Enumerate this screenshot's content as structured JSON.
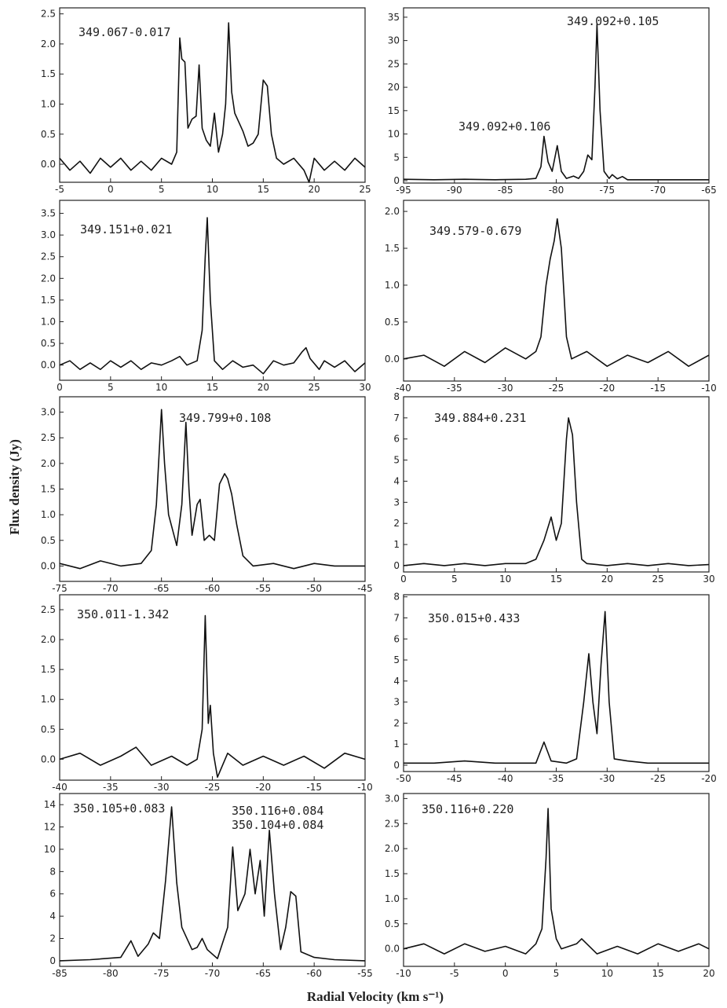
{
  "figure": {
    "xlabel": "Radial Velocity (km s⁻¹)",
    "ylabel": "Flux density (Jy)"
  },
  "chart_data": [
    {
      "type": "line",
      "annotations": [
        "349.067-0.017"
      ],
      "xlim": [
        -5,
        25
      ],
      "ylim": [
        -0.3,
        2.6
      ],
      "xticks": [
        -5,
        0,
        5,
        10,
        15,
        20,
        25
      ],
      "yticks": [
        {
          "value": 0,
          "label": "0.0"
        },
        {
          "value": 0.5,
          "label": "0.5"
        },
        {
          "value": 1,
          "label": "1.0"
        },
        {
          "value": 1.5,
          "label": "1.5"
        },
        {
          "value": 2,
          "label": "2.0"
        },
        {
          "value": 2.5,
          "label": "2.5"
        }
      ],
      "x": [
        -5,
        -4,
        -3,
        -2,
        -1,
        0,
        1,
        2,
        3,
        4,
        5,
        6,
        6.5,
        6.8,
        7,
        7.3,
        7.6,
        8,
        8.4,
        8.7,
        9,
        9.4,
        9.8,
        10.2,
        10.6,
        11,
        11.3,
        11.6,
        11.9,
        12.2,
        12.6,
        13,
        13.5,
        14,
        14.5,
        15,
        15.4,
        15.8,
        16.3,
        17,
        18,
        19,
        19.5,
        20,
        21,
        22,
        23,
        24,
        25
      ],
      "values": [
        0.1,
        -0.1,
        0.05,
        -0.15,
        0.1,
        -0.05,
        0.1,
        -0.1,
        0.05,
        -0.1,
        0.1,
        0,
        0.2,
        2.1,
        1.75,
        1.7,
        0.6,
        0.75,
        0.8,
        1.65,
        0.6,
        0.4,
        0.3,
        0.85,
        0.2,
        0.5,
        1.0,
        2.35,
        1.2,
        0.85,
        0.7,
        0.55,
        0.3,
        0.35,
        0.5,
        1.4,
        1.3,
        0.5,
        0.1,
        0,
        0.1,
        -0.1,
        -0.3,
        0.1,
        -0.1,
        0.05,
        -0.1,
        0.1,
        -0.05
      ]
    },
    {
      "type": "line",
      "annotations": [
        "349.092+0.105",
        "349.092+0.106"
      ],
      "xlim": [
        -95,
        -65
      ],
      "ylim": [
        -0.5,
        37
      ],
      "xticks": [
        -95,
        -90,
        -85,
        -80,
        -75,
        -70,
        -65
      ],
      "yticks": [
        0,
        5,
        10,
        15,
        20,
        25,
        30,
        35
      ],
      "x": [
        -95,
        -92,
        -89,
        -86,
        -83,
        -82,
        -81.5,
        -81.2,
        -80.8,
        -80.4,
        -79.9,
        -79.5,
        -79,
        -78.3,
        -77.8,
        -77.3,
        -76.9,
        -76.5,
        -76.2,
        -76,
        -75.7,
        -75.3,
        -74.8,
        -74.5,
        -74,
        -73.5,
        -73,
        -70,
        -65
      ],
      "values": [
        0.3,
        0.2,
        0.3,
        0.2,
        0.3,
        0.5,
        3,
        9.5,
        4,
        2,
        7.5,
        2,
        0.5,
        1,
        0.5,
        2,
        5.5,
        4.5,
        20,
        33.5,
        15,
        2,
        0.5,
        1.3,
        0.4,
        0.9,
        0.2,
        0.2,
        0.2
      ]
    },
    {
      "type": "line",
      "annotations": [
        "349.151+0.021"
      ],
      "xlim": [
        0,
        30
      ],
      "ylim": [
        -0.35,
        3.8
      ],
      "xticks": [
        0,
        5,
        10,
        15,
        20,
        25,
        30
      ],
      "yticks": [
        {
          "value": 0,
          "label": "0.0"
        },
        {
          "value": 0.5,
          "label": "0.5"
        },
        {
          "value": 1,
          "label": "1.0"
        },
        {
          "value": 1.5,
          "label": "1.5"
        },
        {
          "value": 2,
          "label": "2.0"
        },
        {
          "value": 2.5,
          "label": "2.5"
        },
        {
          "value": 3,
          "label": "3.0"
        },
        {
          "value": 3.5,
          "label": "3.5"
        }
      ],
      "x": [
        0,
        1,
        2,
        3,
        4,
        5,
        6,
        7,
        8,
        9,
        10,
        11,
        11.8,
        12.5,
        13.5,
        14,
        14.3,
        14.5,
        14.8,
        15.2,
        16,
        17,
        18,
        19,
        20,
        21,
        22,
        23,
        23.8,
        24.2,
        24.6,
        25.5,
        26,
        27,
        28,
        29,
        30
      ],
      "values": [
        0,
        0.1,
        -0.1,
        0.05,
        -0.1,
        0.1,
        -0.05,
        0.1,
        -0.1,
        0.05,
        0,
        0.1,
        0.2,
        0,
        0.1,
        0.8,
        2.5,
        3.4,
        1.5,
        0.1,
        -0.1,
        0.1,
        -0.05,
        0,
        -0.2,
        0.1,
        0,
        0.05,
        0.3,
        0.4,
        0.15,
        -0.1,
        0.1,
        -0.05,
        0.1,
        -0.15,
        0.05
      ]
    },
    {
      "type": "line",
      "annotations": [
        "349.579-0.679"
      ],
      "xlim": [
        -40,
        -10
      ],
      "ylim": [
        -0.3,
        2.15
      ],
      "xticks": [
        -40,
        -35,
        -30,
        -25,
        -20,
        -15,
        -10
      ],
      "yticks": [
        {
          "value": 0,
          "label": "0.0"
        },
        {
          "value": 0.5,
          "label": "0.5"
        },
        {
          "value": 1,
          "label": "1.0"
        },
        {
          "value": 1.5,
          "label": "1.5"
        },
        {
          "value": 2,
          "label": "2.0"
        }
      ],
      "x": [
        -40,
        -38,
        -36,
        -34,
        -32,
        -30,
        -28,
        -27,
        -26.5,
        -26,
        -25.6,
        -25.2,
        -24.9,
        -24.5,
        -24,
        -23.5,
        -22,
        -20,
        -18,
        -16,
        -14,
        -12,
        -10
      ],
      "values": [
        0,
        0.05,
        -0.1,
        0.1,
        -0.05,
        0.15,
        0,
        0.1,
        0.3,
        1.0,
        1.35,
        1.6,
        1.9,
        1.5,
        0.3,
        0,
        0.1,
        -0.1,
        0.05,
        -0.05,
        0.1,
        -0.1,
        0.05
      ]
    },
    {
      "type": "line",
      "annotations": [
        "349.799+0.108"
      ],
      "xlim": [
        -75,
        -45
      ],
      "ylim": [
        -0.3,
        3.3
      ],
      "xticks": [
        -75,
        -70,
        -65,
        -60,
        -55,
        -50,
        -45
      ],
      "yticks": [
        {
          "value": 0,
          "label": "0.0"
        },
        {
          "value": 0.5,
          "label": "0.5"
        },
        {
          "value": 1,
          "label": "1.0"
        },
        {
          "value": 1.5,
          "label": "1.5"
        },
        {
          "value": 2,
          "label": "2.0"
        },
        {
          "value": 2.5,
          "label": "2.5"
        },
        {
          "value": 3,
          "label": "3.0"
        }
      ],
      "x": [
        -75,
        -73,
        -71,
        -69,
        -67,
        -66,
        -65.5,
        -65,
        -64.7,
        -64.3,
        -63.5,
        -63,
        -62.6,
        -62.3,
        -62,
        -61.5,
        -61.2,
        -60.8,
        -60.3,
        -59.8,
        -59.3,
        -58.8,
        -58.5,
        -58.1,
        -57.6,
        -57,
        -56,
        -54,
        -52,
        -50,
        -48,
        -45
      ],
      "values": [
        0.05,
        -0.05,
        0.1,
        0,
        0.05,
        0.3,
        1.2,
        3.05,
        2,
        1,
        0.4,
        1.2,
        2.8,
        1.5,
        0.6,
        1.2,
        1.3,
        0.5,
        0.6,
        0.5,
        1.6,
        1.8,
        1.7,
        1.4,
        0.8,
        0.2,
        0,
        0.05,
        -0.05,
        0.05,
        0,
        0
      ]
    },
    {
      "type": "line",
      "annotations": [
        "349.884+0.231"
      ],
      "xlim": [
        0,
        30
      ],
      "ylim": [
        -0.3,
        8
      ],
      "xticks": [
        0,
        5,
        10,
        15,
        20,
        25,
        30
      ],
      "yticks": [
        0,
        1,
        2,
        3,
        4,
        5,
        6,
        7,
        8
      ],
      "x": [
        0,
        2,
        4,
        6,
        8,
        10,
        12,
        13,
        13.8,
        14.5,
        15,
        15.5,
        16,
        16.2,
        16.6,
        17,
        17.5,
        18,
        20,
        22,
        24,
        26,
        28,
        30
      ],
      "values": [
        0,
        0.1,
        0,
        0.1,
        0,
        0.1,
        0.1,
        0.3,
        1.2,
        2.3,
        1.2,
        2,
        6,
        7,
        6.2,
        3,
        0.3,
        0.1,
        0,
        0.1,
        0,
        0.1,
        0,
        0.05
      ]
    },
    {
      "type": "line",
      "annotations": [
        "350.011-1.342"
      ],
      "xlim": [
        -40,
        -10
      ],
      "ylim": [
        -0.35,
        2.75
      ],
      "xticks": [
        -40,
        -35,
        -30,
        -25,
        -20,
        -15,
        -10
      ],
      "yticks": [
        {
          "value": 0,
          "label": "0.0"
        },
        {
          "value": 0.5,
          "label": "0.5"
        },
        {
          "value": 1,
          "label": "1.0"
        },
        {
          "value": 1.5,
          "label": "1.5"
        },
        {
          "value": 2,
          "label": "2.0"
        },
        {
          "value": 2.5,
          "label": "2.5"
        }
      ],
      "x": [
        -40,
        -38,
        -36,
        -34,
        -32.5,
        -31,
        -29,
        -27.5,
        -26.5,
        -26,
        -25.7,
        -25.4,
        -25.2,
        -24.9,
        -24.5,
        -23.5,
        -22,
        -20,
        -18,
        -16,
        -14,
        -12,
        -10
      ],
      "values": [
        0,
        0.1,
        -0.1,
        0.05,
        0.2,
        -0.1,
        0.05,
        -0.1,
        0,
        0.5,
        2.4,
        0.6,
        0.9,
        0.1,
        -0.3,
        0.1,
        -0.1,
        0.05,
        -0.1,
        0.05,
        -0.15,
        0.1,
        0
      ]
    },
    {
      "type": "line",
      "annotations": [
        "350.015+0.433"
      ],
      "xlim": [
        -50,
        -20
      ],
      "ylim": [
        -0.3,
        8.1
      ],
      "xticks": [
        -50,
        -45,
        -40,
        -35,
        -30,
        -25,
        -20
      ],
      "yticks": [
        0,
        1,
        2,
        3,
        4,
        5,
        6,
        7,
        8
      ],
      "x": [
        -50,
        -47,
        -44,
        -41,
        -38,
        -37,
        -36.2,
        -35.5,
        -34,
        -33,
        -32.3,
        -31.8,
        -31.4,
        -31,
        -30.6,
        -30.2,
        -29.8,
        -29.3,
        -28,
        -26,
        -24,
        -22,
        -20
      ],
      "values": [
        0.1,
        0.1,
        0.2,
        0.1,
        0.1,
        0.1,
        1.1,
        0.2,
        0.1,
        0.3,
        3,
        5.3,
        3,
        1.5,
        4.8,
        7.3,
        3,
        0.3,
        0.2,
        0.1,
        0.1,
        0.1,
        0.1
      ]
    },
    {
      "type": "line",
      "annotations": [
        "350.105+0.083",
        "350.116+0.084",
        "350.104+0.084"
      ],
      "xlim": [
        -85,
        -55
      ],
      "ylim": [
        -0.5,
        15
      ],
      "xticks": [
        -85,
        -80,
        -75,
        -70,
        -65,
        -60,
        -55
      ],
      "yticks": [
        0,
        2,
        4,
        6,
        8,
        10,
        12,
        14
      ],
      "x": [
        -85,
        -82,
        -79,
        -78,
        -77.3,
        -76.3,
        -75.8,
        -75.2,
        -74.6,
        -74,
        -73.5,
        -73,
        -72,
        -71.5,
        -71,
        -70.5,
        -69.5,
        -68.5,
        -68,
        -67.5,
        -66.8,
        -66.3,
        -65.8,
        -65.3,
        -64.9,
        -64.4,
        -63.9,
        -63.3,
        -62.8,
        -62.3,
        -61.8,
        -61.3,
        -60,
        -58,
        -55
      ],
      "values": [
        0,
        0.1,
        0.3,
        1.8,
        0.4,
        1.5,
        2.5,
        2,
        7.2,
        13.8,
        7,
        3,
        1,
        1.2,
        2,
        1,
        0.2,
        3,
        10.2,
        4.5,
        6,
        10,
        6,
        9,
        4,
        11.7,
        6,
        1,
        3,
        6.2,
        5.8,
        0.8,
        0.3,
        0.1,
        0
      ]
    },
    {
      "type": "line",
      "annotations": [
        "350.116+0.220"
      ],
      "xlim": [
        -10,
        20
      ],
      "ylim": [
        -0.35,
        3.1
      ],
      "xticks": [
        -10,
        -5,
        0,
        5,
        10,
        15,
        20
      ],
      "yticks": [
        {
          "value": 0,
          "label": "0.0"
        },
        {
          "value": 0.5,
          "label": "0.5"
        },
        {
          "value": 1,
          "label": "1.0"
        },
        {
          "value": 1.5,
          "label": "1.5"
        },
        {
          "value": 2,
          "label": "2.0"
        },
        {
          "value": 2.5,
          "label": "2.5"
        },
        {
          "value": 3,
          "label": "3.0"
        }
      ],
      "x": [
        -10,
        -8,
        -6,
        -4,
        -2,
        0,
        2,
        3,
        3.6,
        4,
        4.2,
        4.5,
        5,
        5.5,
        7,
        7.5,
        9,
        11,
        13,
        15,
        17,
        19,
        20
      ],
      "values": [
        0,
        0.1,
        -0.1,
        0.1,
        -0.05,
        0.05,
        -0.1,
        0.1,
        0.4,
        1.8,
        2.8,
        0.8,
        0.2,
        0,
        0.1,
        0.2,
        -0.1,
        0.05,
        -0.1,
        0.1,
        -0.05,
        0.1,
        0
      ]
    }
  ]
}
